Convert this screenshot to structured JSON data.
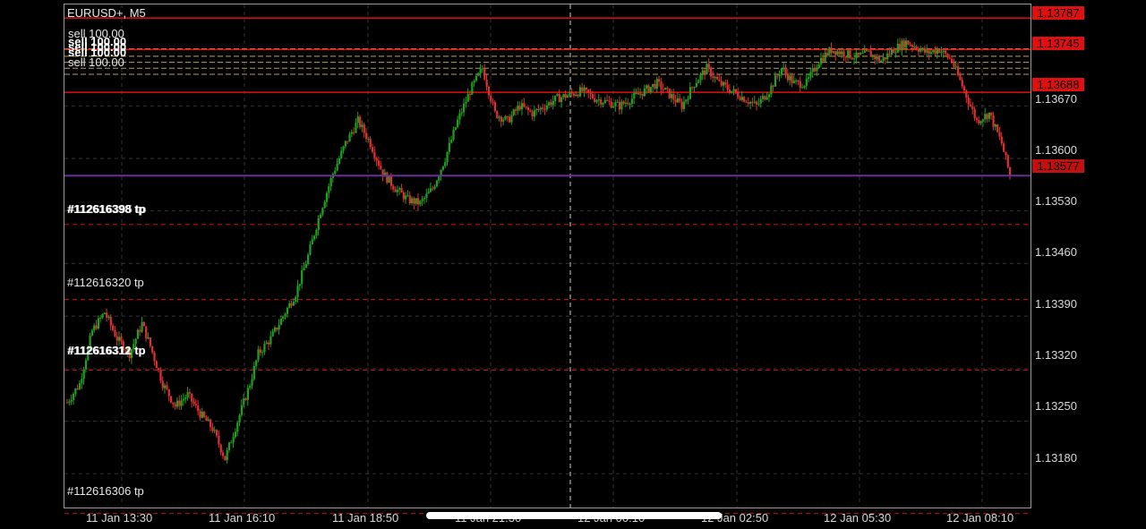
{
  "symbol": "EURUSD+, M5",
  "price_axis": {
    "ticks": [
      "1.13670",
      "1.13600",
      "1.13530",
      "1.13460",
      "1.13390",
      "1.13320",
      "1.13250",
      "1.13180"
    ],
    "tick_values": [
      1.1367,
      1.136,
      1.1353,
      1.1346,
      1.1339,
      1.1332,
      1.1325,
      1.1318
    ]
  },
  "price_tags": [
    {
      "label": "1.13787",
      "value": 1.13787,
      "color": "#e01010",
      "text_color": "#000000"
    },
    {
      "label": "1.13745",
      "value": 1.13745,
      "color": "#e01010",
      "text_color": "#000000"
    },
    {
      "label": "1.13688",
      "value": 1.13688,
      "color": "#e01010",
      "text_color": "#000000"
    },
    {
      "label": "1.13577",
      "value": 1.13577,
      "color": "#c01010",
      "text_color": "#000000"
    }
  ],
  "time_axis": {
    "labels": [
      "11 Jan 13:30",
      "11 Jan 16:10",
      "11 Jan 18:50",
      "11 Jan 21:30",
      "12 Jan 00:10",
      "12 Jan 02:50",
      "12 Jan 05:30",
      "12 Jan 08:10"
    ]
  },
  "order_labels": {
    "sell_top": "sell 100.00",
    "sell_stack": [
      "sell 100.00",
      "sell 100.00",
      "sell 100.00",
      "sell 100.00"
    ],
    "tp_1": "#112616398 tp",
    "tp_1_overlap": "#112616395 tp",
    "tp_2": "#112616320 tp",
    "tp_3": "#112616312 tp",
    "tp_3_overlap": "#112616311 tp",
    "tp_4": "#112616306 tp"
  },
  "colors": {
    "background": "#000000",
    "bull_candle": "#1fa31f",
    "bear_candle": "#e03030",
    "level_line": "#e01010",
    "bid_line": "#6a2da0",
    "grid": "#333333",
    "sl_lines": "#b8a060"
  },
  "chart_data": {
    "type": "candlestick",
    "y_range": [
      1.13135,
      1.13805
    ],
    "levels_solid": [
      1.13787,
      1.13745,
      1.13688
    ],
    "bid_line": 1.13577,
    "sell_stop_levels": [
      1.13746,
      1.13736,
      1.13728,
      1.1372,
      1.13712
    ],
    "tp_levels": [
      1.13512,
      1.13412,
      1.13318,
      1.13127
    ],
    "crosshair_time": "12 Jan 00:00",
    "path": [
      [
        0,
        1.13275
      ],
      [
        6,
        1.133
      ],
      [
        12,
        1.1337
      ],
      [
        18,
        1.13395
      ],
      [
        24,
        1.1336
      ],
      [
        30,
        1.1334
      ],
      [
        36,
        1.1338
      ],
      [
        40,
        1.1335
      ],
      [
        46,
        1.133
      ],
      [
        52,
        1.1327
      ],
      [
        58,
        1.13285
      ],
      [
        64,
        1.1326
      ],
      [
        70,
        1.1324
      ],
      [
        76,
        1.132
      ],
      [
        82,
        1.1325
      ],
      [
        88,
        1.133
      ],
      [
        92,
        1.1334
      ],
      [
        98,
        1.1336
      ],
      [
        104,
        1.1339
      ],
      [
        110,
        1.1342
      ],
      [
        116,
        1.1347
      ],
      [
        122,
        1.1353
      ],
      [
        128,
        1.1358
      ],
      [
        134,
        1.1362
      ],
      [
        140,
        1.1365
      ],
      [
        146,
        1.1362
      ],
      [
        152,
        1.1358
      ],
      [
        158,
        1.1356
      ],
      [
        164,
        1.13545
      ],
      [
        170,
        1.1354
      ],
      [
        176,
        1.1356
      ],
      [
        182,
        1.136
      ],
      [
        188,
        1.1365
      ],
      [
        194,
        1.1369
      ],
      [
        200,
        1.1372
      ],
      [
        206,
        1.1366
      ],
      [
        212,
        1.1365
      ],
      [
        218,
        1.1367
      ],
      [
        224,
        1.1366
      ],
      [
        230,
        1.1367
      ],
      [
        236,
        1.1368
      ],
      [
        242,
        1.13685
      ],
      [
        248,
        1.1369
      ],
      [
        254,
        1.1368
      ],
      [
        260,
        1.13675
      ],
      [
        266,
        1.1367
      ],
      [
        272,
        1.1368
      ],
      [
        278,
        1.1369
      ],
      [
        284,
        1.137
      ],
      [
        290,
        1.13685
      ],
      [
        296,
        1.1367
      ],
      [
        302,
        1.137
      ],
      [
        308,
        1.1372
      ],
      [
        314,
        1.137
      ],
      [
        320,
        1.1369
      ],
      [
        326,
        1.1368
      ],
      [
        332,
        1.1367
      ],
      [
        338,
        1.1369
      ],
      [
        344,
        1.1372
      ],
      [
        350,
        1.137
      ],
      [
        356,
        1.137
      ],
      [
        362,
        1.1373
      ],
      [
        368,
        1.13745
      ],
      [
        374,
        1.1374
      ],
      [
        380,
        1.13735
      ],
      [
        386,
        1.1374
      ],
      [
        392,
        1.1373
      ],
      [
        398,
        1.13745
      ],
      [
        404,
        1.13755
      ],
      [
        408,
        1.1375
      ],
      [
        414,
        1.1374
      ],
      [
        420,
        1.13745
      ],
      [
        426,
        1.1373
      ],
      [
        432,
        1.1369
      ],
      [
        438,
        1.1365
      ],
      [
        444,
        1.1366
      ],
      [
        450,
        1.1362
      ],
      [
        454,
        1.13577
      ]
    ]
  }
}
